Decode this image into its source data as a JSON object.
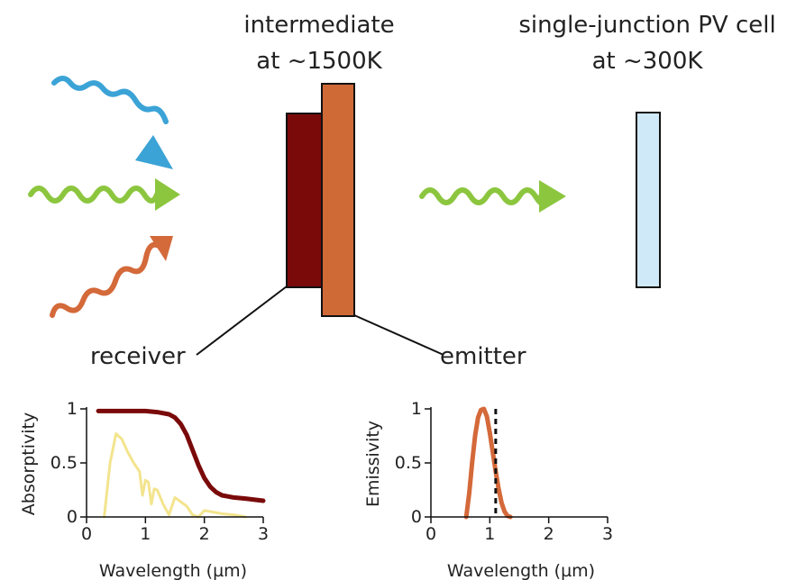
{
  "labels": {
    "intermediate_line1": "intermediate",
    "intermediate_line2": "at ~1500K",
    "pv_line1": "single-junction PV cell",
    "pv_line2": "at ~300K",
    "receiver": "receiver",
    "emitter": "emitter"
  },
  "colors": {
    "blue_wave": "#3ba3d6",
    "green_wave": "#8cc63f",
    "orange_wave": "#d4693a",
    "receiver": "#7a0a0a",
    "emitter": "#cf6a37",
    "pv_cell": "#cfe9f8",
    "absorptivity_receiver": "#7a0a0a",
    "solar_spectrum": "#f3e48e",
    "emissivity": "#d4693a"
  },
  "icons": [
    "blue-wave-arrow-icon",
    "green-wave-arrow-icon",
    "orange-wave-arrow-icon"
  ],
  "chart_data": [
    {
      "type": "line",
      "xlabel": "Wavelength (µm)",
      "ylabel": "Absorptivity",
      "xlim": [
        0,
        3
      ],
      "ylim": [
        0,
        1
      ],
      "xticks": [
        "0",
        "1",
        "2",
        "3"
      ],
      "yticks": [
        "0",
        "0.5",
        "1"
      ],
      "series": [
        {
          "color": "#7a0a0a",
          "x": [
            0.2,
            0.5,
            0.8,
            1.0,
            1.2,
            1.4,
            1.5,
            1.6,
            1.7,
            1.8,
            1.9,
            2.0,
            2.1,
            2.2,
            2.3,
            2.5,
            2.7,
            3.0
          ],
          "y": [
            0.98,
            0.98,
            0.98,
            0.98,
            0.97,
            0.95,
            0.92,
            0.86,
            0.76,
            0.62,
            0.48,
            0.36,
            0.28,
            0.23,
            0.2,
            0.18,
            0.17,
            0.15
          ]
        },
        {
          "color": "#f3e48e",
          "x": [
            0.3,
            0.4,
            0.5,
            0.6,
            0.7,
            0.8,
            0.9,
            0.95,
            1.0,
            1.05,
            1.1,
            1.15,
            1.2,
            1.3,
            1.4,
            1.5,
            1.6,
            1.7,
            1.8,
            1.9,
            2.0,
            2.1,
            2.3,
            2.5,
            2.7
          ],
          "y": [
            0.0,
            0.5,
            0.77,
            0.72,
            0.6,
            0.5,
            0.42,
            0.2,
            0.34,
            0.32,
            0.12,
            0.26,
            0.25,
            0.12,
            0.02,
            0.18,
            0.14,
            0.1,
            0.02,
            0.0,
            0.06,
            0.05,
            0.03,
            0.02,
            0.0
          ]
        }
      ]
    },
    {
      "type": "line",
      "xlabel": "Wavelength (µm)",
      "ylabel": "Emissivity",
      "xlim": [
        0,
        3
      ],
      "ylim": [
        0,
        1
      ],
      "xticks": [
        "0",
        "1",
        "2",
        "3"
      ],
      "yticks": [
        "0",
        "0.5",
        "1"
      ],
      "bandgap_x": 1.1,
      "series": [
        {
          "color": "#d4693a",
          "x": [
            0.6,
            0.65,
            0.7,
            0.75,
            0.8,
            0.85,
            0.9,
            0.95,
            1.0,
            1.05,
            1.1,
            1.15,
            1.2,
            1.25,
            1.3,
            1.35
          ],
          "y": [
            0.0,
            0.22,
            0.5,
            0.75,
            0.92,
            0.99,
            1.0,
            0.93,
            0.78,
            0.6,
            0.42,
            0.26,
            0.13,
            0.05,
            0.01,
            0.0
          ]
        }
      ]
    }
  ]
}
